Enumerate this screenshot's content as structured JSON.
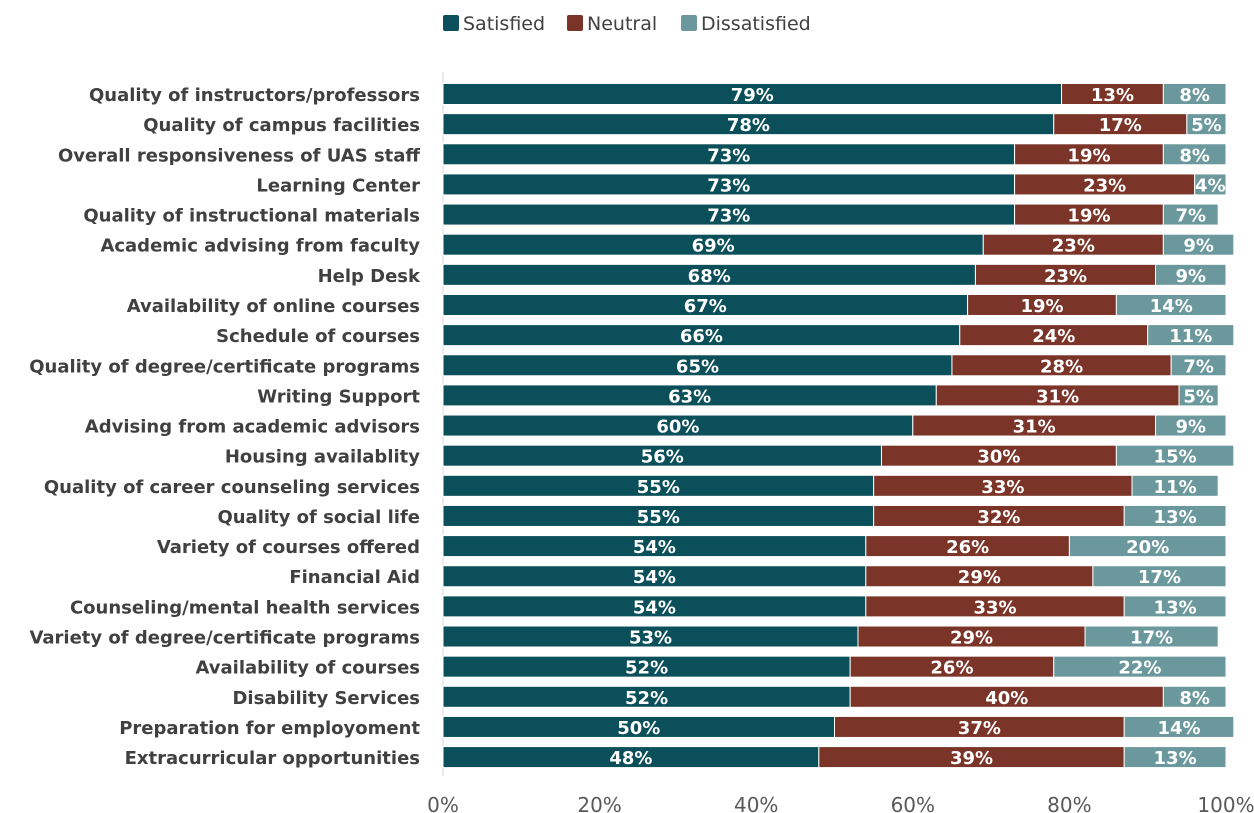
{
  "chart_data": {
    "type": "bar",
    "orientation": "horizontal",
    "stacked": true,
    "categories": [
      "Quality of instructors/professors",
      "Quality of campus facilities",
      "Overall responsiveness of UAS staff",
      "Learning Center",
      "Quality of instructional materials",
      "Academic advising from faculty",
      "Help Desk",
      "Availability of online courses",
      "Schedule of courses",
      "Quality of degree/certificate programs",
      "Writing Support",
      "Advising from academic advisors",
      "Housing availablity",
      "Quality of career counseling services",
      "Quality of social life",
      "Variety of courses offered",
      "Financial Aid",
      "Counseling/mental health services",
      "Variety of degree/certificate programs",
      "Availability of courses",
      "Disability Services",
      "Preparation for employoment",
      "Extracurricular opportunities"
    ],
    "series": [
      {
        "name": "Satisfied",
        "color": "#0a4f5a",
        "values": [
          79,
          78,
          73,
          73,
          73,
          69,
          68,
          67,
          66,
          65,
          63,
          60,
          56,
          55,
          55,
          54,
          54,
          54,
          53,
          52,
          52,
          50,
          48
        ]
      },
      {
        "name": "Neutral",
        "color": "#7a3428",
        "values": [
          13,
          17,
          19,
          23,
          19,
          23,
          23,
          19,
          24,
          28,
          31,
          31,
          30,
          33,
          32,
          26,
          29,
          33,
          29,
          26,
          40,
          37,
          39
        ]
      },
      {
        "name": "Dissatisfied",
        "color": "#6b989c",
        "values": [
          8,
          5,
          8,
          4,
          7,
          9,
          9,
          14,
          11,
          7,
          5,
          9,
          15,
          11,
          13,
          20,
          17,
          13,
          17,
          22,
          8,
          14,
          13
        ]
      }
    ],
    "x_ticks": [
      "0%",
      "20%",
      "40%",
      "60%",
      "80%",
      "100%"
    ],
    "xlim": [
      0,
      100
    ],
    "value_suffix": "%",
    "legend_position": "top",
    "grid": false,
    "title": "",
    "xlabel": "",
    "ylabel": ""
  }
}
